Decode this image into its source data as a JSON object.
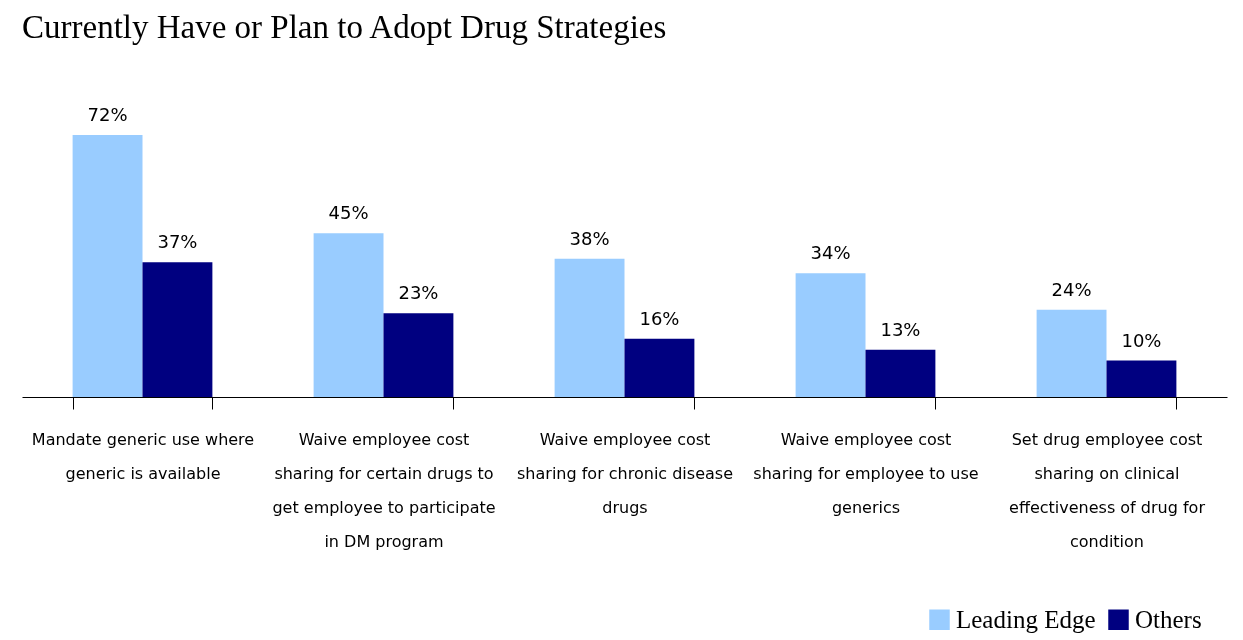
{
  "chart_data": {
    "type": "bar",
    "title": "Currently Have or Plan to Adopt Drug Strategies",
    "categories": [
      "Mandate generic use where generic is available",
      "Waive employee cost sharing for certain drugs to get employee to participate in DM program",
      "Waive employee cost sharing for chronic disease drugs",
      "Waive employee cost sharing for employee to use generics",
      "Set drug employee cost sharing on clinical effectiveness of drug for condition"
    ],
    "series": [
      {
        "name": "Leading Edge",
        "color": "#99ccff",
        "values": [
          72,
          45,
          38,
          34,
          24
        ],
        "value_labels": [
          "72%",
          "45%",
          "38%",
          "34%",
          "24%"
        ]
      },
      {
        "name": "Others",
        "color": "#000080",
        "values": [
          37,
          23,
          16,
          13,
          10
        ],
        "value_labels": [
          "37%",
          "23%",
          "16%",
          "13%",
          "10%"
        ]
      }
    ],
    "legend": "bottom right",
    "tick_labels": "x",
    "grid": false
  }
}
